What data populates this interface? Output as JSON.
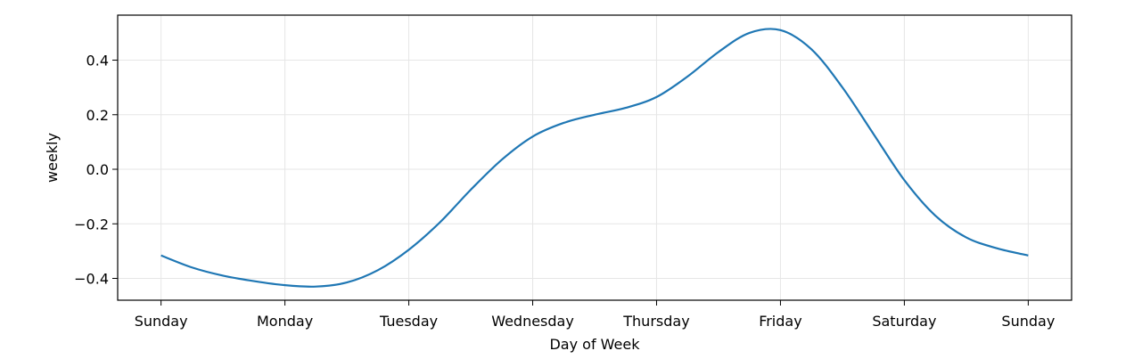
{
  "chart_data": {
    "type": "line",
    "title": "",
    "xlabel": "Day of Week",
    "ylabel": "weekly",
    "x_tick_labels": [
      "Sunday",
      "Monday",
      "Tuesday",
      "Wednesday",
      "Thursday",
      "Friday",
      "Saturday",
      "Sunday"
    ],
    "y_ticks": [
      -0.4,
      -0.2,
      0.0,
      0.2,
      0.4
    ],
    "y_tick_labels": [
      "−0.4",
      "−0.2",
      "0.0",
      "0.2",
      "0.4"
    ],
    "xlim": [
      -0.35,
      7.35
    ],
    "ylim": [
      -0.48,
      0.565
    ],
    "grid": true,
    "series": [
      {
        "color": "#1f77b4",
        "x": [
          0,
          0.25,
          0.5,
          0.75,
          1.0,
          1.25,
          1.5,
          1.75,
          2.0,
          2.25,
          2.5,
          2.75,
          3.0,
          3.25,
          3.5,
          3.75,
          4.0,
          4.25,
          4.5,
          4.75,
          5.0,
          5.25,
          5.5,
          5.75,
          6.0,
          6.25,
          6.5,
          6.75,
          7.0
        ],
        "values": [
          -0.316,
          -0.36,
          -0.39,
          -0.41,
          -0.425,
          -0.43,
          -0.415,
          -0.37,
          -0.295,
          -0.195,
          -0.075,
          0.035,
          0.12,
          0.17,
          0.2,
          0.225,
          0.265,
          0.34,
          0.43,
          0.5,
          0.51,
          0.44,
          0.3,
          0.13,
          -0.04,
          -0.17,
          -0.25,
          -0.29,
          -0.316
        ]
      }
    ]
  }
}
